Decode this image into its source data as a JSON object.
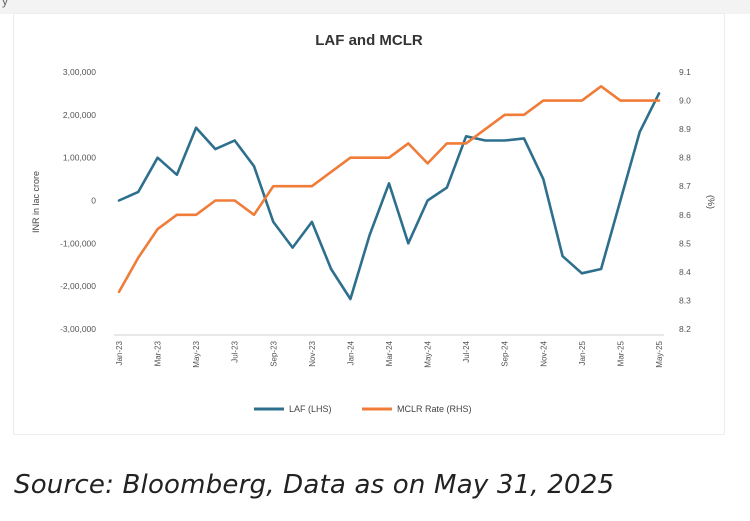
{
  "page_header_fragment": "y",
  "chart_data": {
    "type": "line",
    "title": "LAF and MCLR",
    "categories": [
      "Jan-23",
      "",
      "Mar-23",
      "",
      "May-23",
      "",
      "Jul-23",
      "",
      "Sep-23",
      "",
      "Nov-23",
      "",
      "Jan-24",
      "",
      "Mar-24",
      "",
      "May-24",
      "",
      "Jul-24",
      "",
      "Sep-24",
      "",
      "Nov-24",
      "",
      "Jan-25",
      "",
      "Mar-25",
      "",
      "May-25"
    ],
    "x_tick_labels": [
      "Jan-23",
      "Mar-23",
      "May-23",
      "Jul-23",
      "Sep-23",
      "Nov-23",
      "Jan-24",
      "Mar-24",
      "May-24",
      "Jul-24",
      "Sep-24",
      "Nov-24",
      "Jan-25",
      "Mar-25",
      "May-25"
    ],
    "ylabel": "INR in lac crore",
    "y2label": "(%)",
    "ylim": [
      -300000,
      300000
    ],
    "y_ticks": [
      "3,00,000",
      "2,00,000",
      "1,00,000",
      "0",
      "-1,00,000",
      "-2,00,000",
      "-3,00,000"
    ],
    "y2lim": [
      8.2,
      9.1
    ],
    "y2_ticks": [
      "9.1",
      "9.0",
      "8.9",
      "8.8",
      "8.7",
      "8.6",
      "8.5",
      "8.4",
      "8.3",
      "8.2"
    ],
    "series": [
      {
        "name": "LAF (LHS)",
        "axis": "left",
        "color": "#2e6f8e",
        "values": [
          0,
          20000,
          100000,
          60000,
          170000,
          120000,
          140000,
          80000,
          -50000,
          -110000,
          -50000,
          -160000,
          -230000,
          -80000,
          40000,
          -100000,
          0,
          30000,
          150000,
          140000,
          140000,
          145000,
          50000,
          -130000,
          -170000,
          -160000,
          0,
          160000,
          250000
        ]
      },
      {
        "name": "MCLR Rate (RHS)",
        "axis": "right",
        "color": "#f07c3a",
        "values": [
          8.33,
          8.45,
          8.55,
          8.6,
          8.6,
          8.65,
          8.65,
          8.6,
          8.7,
          8.7,
          8.7,
          8.75,
          8.8,
          8.8,
          8.8,
          8.85,
          8.78,
          8.85,
          8.85,
          8.9,
          8.95,
          8.95,
          9.0,
          9.0,
          9.0,
          9.05,
          9.0,
          9.0,
          9.0
        ]
      }
    ],
    "grid": false,
    "legend": "bottom"
  },
  "source_note": "Source: Bloomberg, Data as on May 31, 2025"
}
